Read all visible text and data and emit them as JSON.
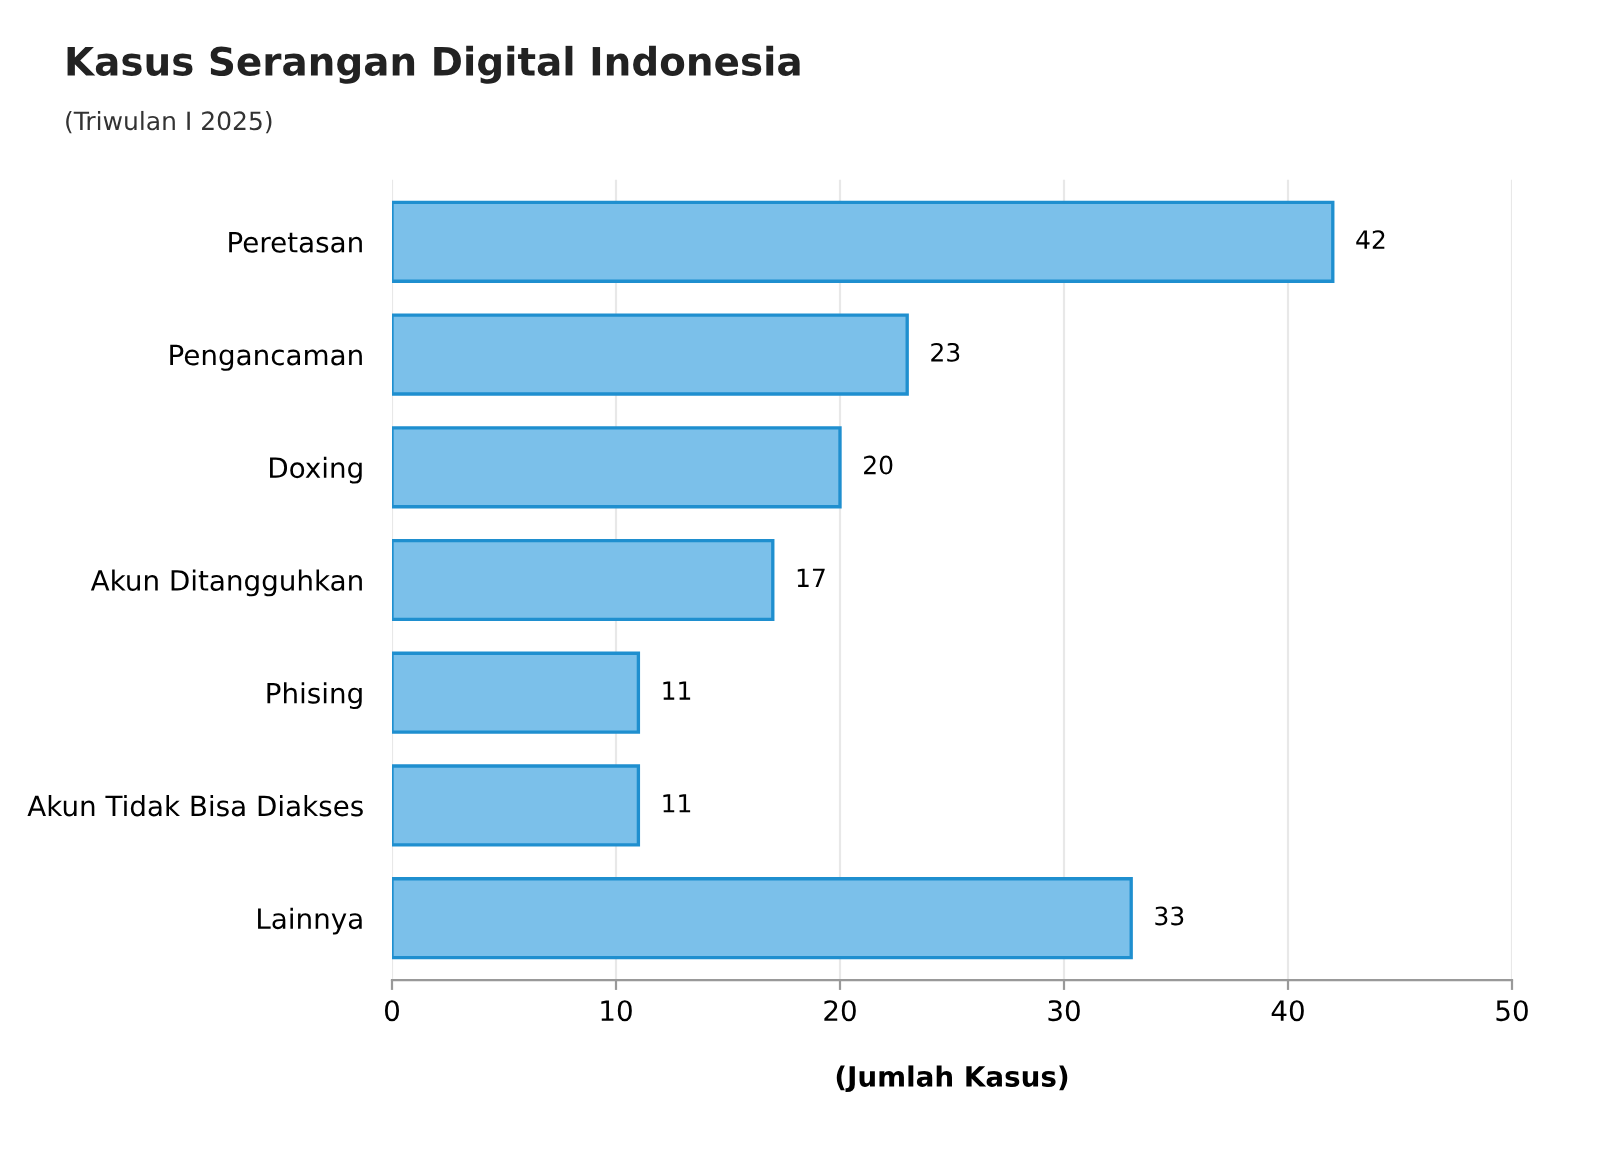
{
  "chart_data": {
    "type": "bar",
    "orientation": "horizontal",
    "title": "Kasus Serangan Digital Indonesia",
    "subtitle": "(Triwulan I 2025)",
    "xlabel": "(Jumlah Kasus)",
    "categories": [
      "Peretasan",
      "Pengancaman",
      "Doxing",
      "Akun Ditangguhkan",
      "Phising",
      "Akun Tidak Bisa Diakses",
      "Lainnya"
    ],
    "values": [
      42,
      23,
      20,
      17,
      11,
      11,
      33
    ],
    "color": "#7bc0ea",
    "xlim": [
      0,
      50
    ],
    "xticks": [
      0,
      10,
      20,
      30,
      40,
      50
    ],
    "grid": "x",
    "data_labels": true
  }
}
